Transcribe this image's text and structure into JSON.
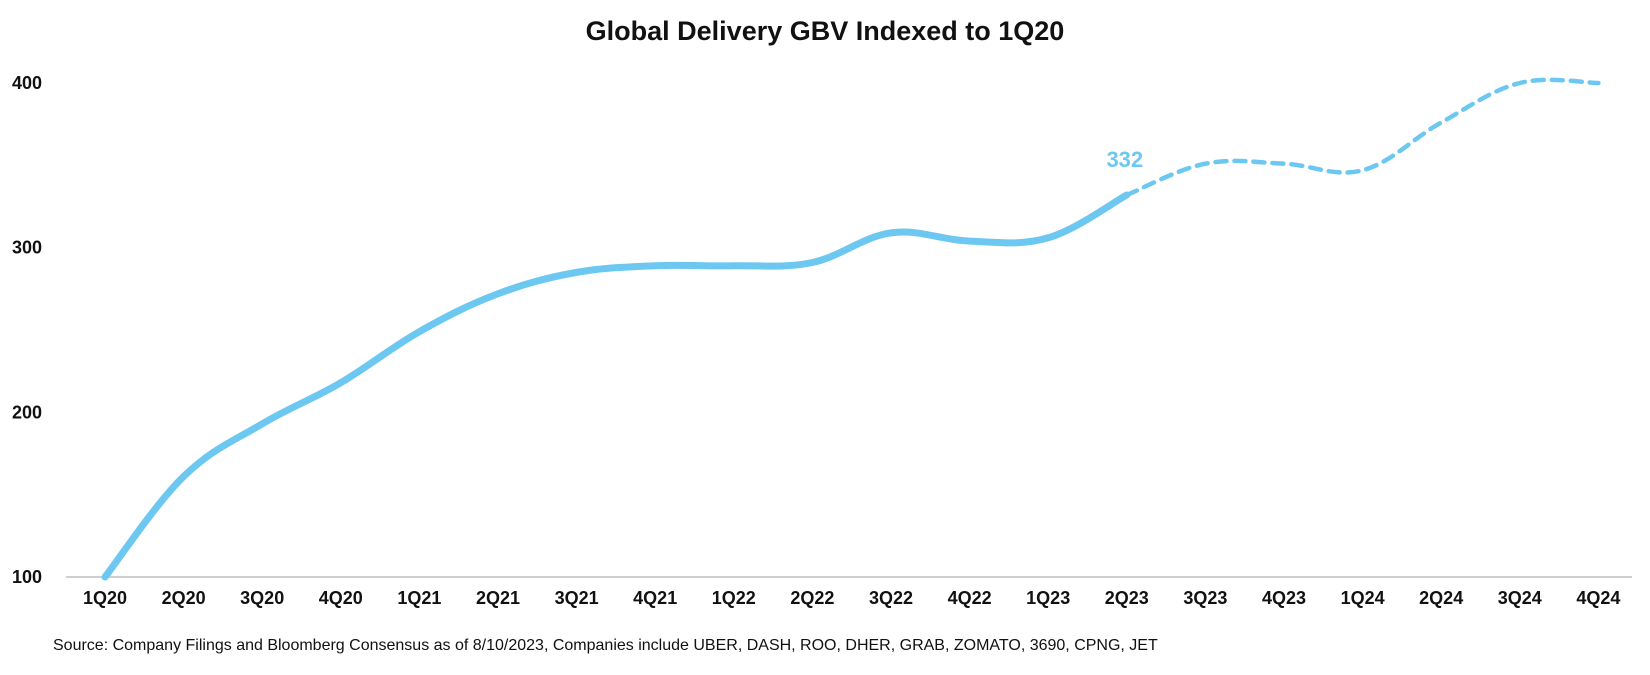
{
  "colors": {
    "series": "#6cc8f0",
    "axis": "#bfbfbf",
    "text": "#111111"
  },
  "chart_data": {
    "type": "line",
    "title": "Global Delivery GBV Indexed to 1Q20",
    "xlabel": "",
    "ylabel": "",
    "categories": [
      "1Q20",
      "2Q20",
      "3Q20",
      "4Q20",
      "1Q21",
      "2Q21",
      "3Q21",
      "4Q21",
      "1Q22",
      "2Q22",
      "3Q22",
      "4Q22",
      "1Q23",
      "2Q23",
      "3Q23",
      "4Q23",
      "1Q24",
      "2Q24",
      "3Q24",
      "4Q24"
    ],
    "ylim": [
      100,
      400
    ],
    "yticks": [
      "100",
      "200",
      "300",
      "400"
    ],
    "grid": false,
    "legend": "none",
    "series": [
      {
        "values": [
          100,
          161,
          193,
          218,
          249,
          272,
          285,
          289,
          289,
          291,
          309,
          304,
          306,
          332,
          351,
          351,
          347,
          376,
          400,
          400
        ],
        "actual_through_index": 13,
        "forecast_style": "dashed"
      }
    ],
    "annotations": [
      {
        "category": "2Q23",
        "text": "332"
      }
    ]
  },
  "source": "Source: Company Filings and Bloomberg Consensus as of 8/10/2023, Companies include UBER, DASH, ROO, DHER, GRAB, ZOMATO, 3690, CPNG, JET"
}
